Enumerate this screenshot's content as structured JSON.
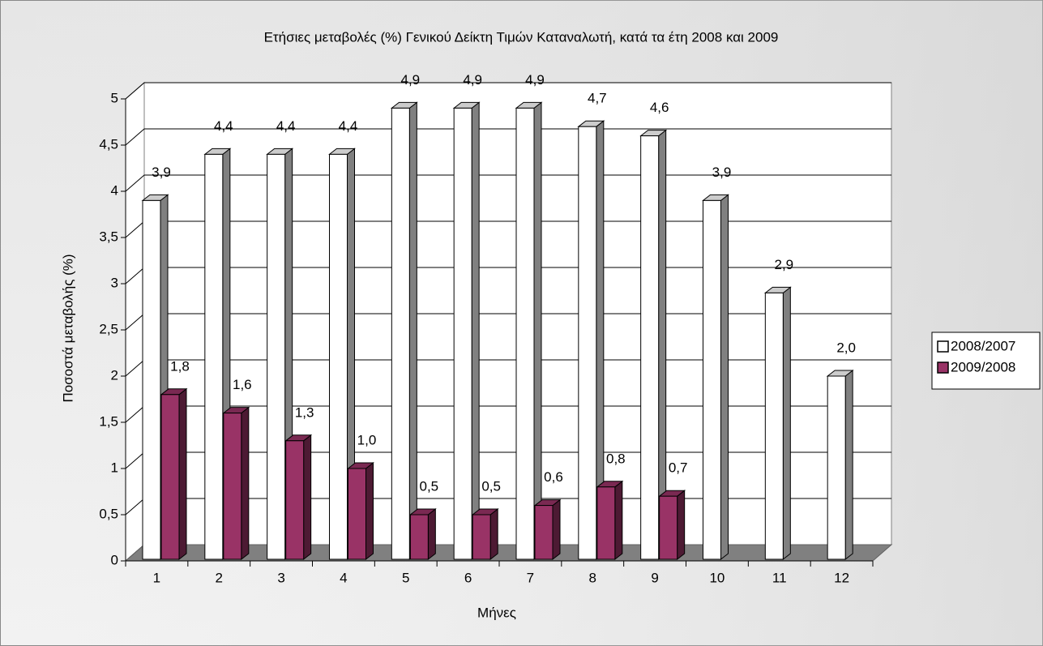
{
  "chart_data": {
    "type": "bar",
    "title": "Ετήσιες μεταβολές (%) Γενικού Δείκτη Τιμών Καταναλωτή, κατά τα έτη 2008 και 2009",
    "x_label": "Μήνες",
    "y_label": "Ποσοστά μεταβολής (%)",
    "categories": [
      "1",
      "2",
      "3",
      "4",
      "5",
      "6",
      "7",
      "8",
      "9",
      "10",
      "11",
      "12"
    ],
    "series": [
      {
        "name": "2008/2007",
        "color": "#ffffff",
        "values": [
          3.9,
          4.4,
          4.4,
          4.4,
          4.9,
          4.9,
          4.9,
          4.7,
          4.6,
          3.9,
          2.9,
          2.0
        ],
        "value_labels": [
          "3,9",
          "4,4",
          "4,4",
          "4,4",
          "4,9",
          "4,9",
          "4,9",
          "4,7",
          "4,6",
          "3,9",
          "2,9",
          "2,0"
        ]
      },
      {
        "name": "2009/2008",
        "color": "#993366",
        "values": [
          1.8,
          1.6,
          1.3,
          1.0,
          0.5,
          0.5,
          0.6,
          0.8,
          0.7,
          null,
          null,
          null
        ],
        "value_labels": [
          "1,8",
          "1,6",
          "1,3",
          "1,0",
          "0,5",
          "0,5",
          "0,6",
          "0,8",
          "0,7",
          null,
          null,
          null
        ]
      }
    ],
    "ylim": [
      0,
      5
    ],
    "yticks": [
      0,
      {
        "value": 0.5,
        "label": "0,5"
      },
      1,
      {
        "value": 1.5,
        "label": "1,5"
      },
      2,
      {
        "value": 2.5,
        "label": "2,5"
      },
      3,
      {
        "value": 3.5,
        "label": "3,5"
      },
      4,
      {
        "value": 4.5,
        "label": "4,5"
      },
      5
    ],
    "grid": true,
    "legend": "right"
  }
}
